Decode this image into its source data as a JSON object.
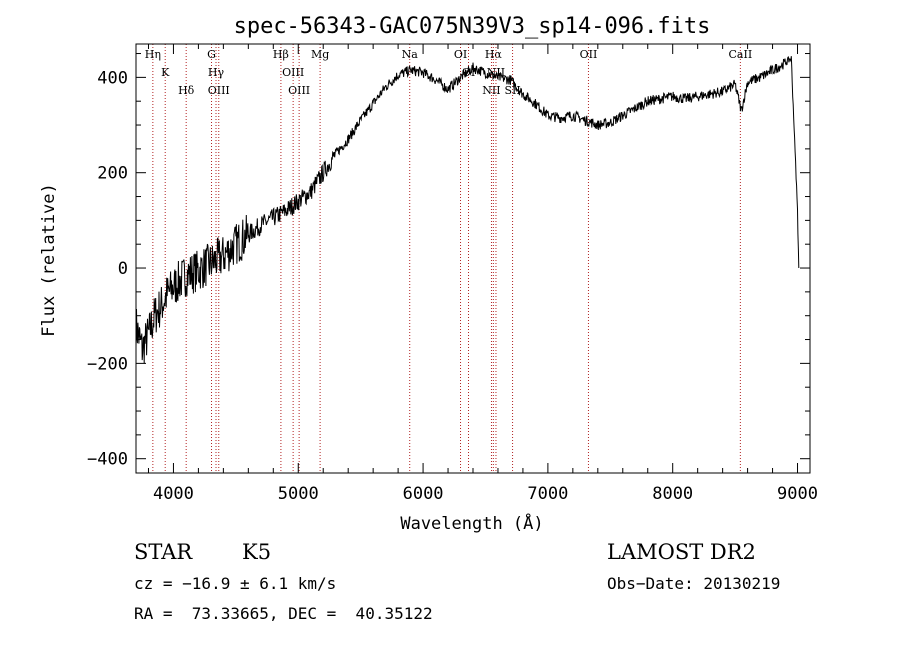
{
  "chart_data": {
    "type": "line",
    "title": "spec-56343-GAC075N39V3_sp14-096.fits",
    "xlabel": "Wavelength (Å)",
    "ylabel": "Flux (relative)",
    "xlim": [
      3700,
      9100
    ],
    "ylim": [
      -430,
      470
    ],
    "xticks": [
      4000,
      5000,
      6000,
      7000,
      8000,
      9000
    ],
    "yticks": [
      -400,
      -200,
      0,
      200,
      400
    ],
    "grid": false,
    "series": [
      {
        "x": [
          3700,
          3750,
          3800,
          3850,
          3900,
          3950,
          4000,
          4100,
          4200,
          4300,
          4400,
          4500,
          4600,
          4700,
          4800,
          4900,
          5000,
          5100,
          5200,
          5300,
          5400,
          5500,
          5600,
          5700,
          5800,
          5900,
          6000,
          6100,
          6200,
          6300,
          6400,
          6500,
          6600,
          6700,
          6800,
          6900,
          7000,
          7100,
          7200,
          7300,
          7400,
          7500,
          7600,
          7700,
          7800,
          7900,
          8000,
          8100,
          8200,
          8300,
          8400,
          8500,
          8550,
          8600,
          8700,
          8800,
          8900,
          8950,
          9000,
          9010
        ],
        "y": [
          -120,
          -170,
          -140,
          -100,
          -80,
          -55,
          -40,
          -15,
          -5,
          10,
          25,
          50,
          70,
          90,
          105,
          120,
          140,
          160,
          200,
          240,
          270,
          310,
          345,
          380,
          405,
          415,
          410,
          395,
          375,
          400,
          420,
          410,
          400,
          395,
          365,
          345,
          320,
          315,
          320,
          310,
          300,
          305,
          320,
          335,
          350,
          355,
          360,
          355,
          360,
          365,
          370,
          385,
          330,
          390,
          400,
          415,
          430,
          440,
          120,
          0
        ]
      }
    ],
    "lines": [
      {
        "name": "Hη",
        "wave": 3835
      },
      {
        "name": "K",
        "wave": 3934
      },
      {
        "name": "Hδ",
        "wave": 4102
      },
      {
        "name": "G",
        "wave": 4305
      },
      {
        "name": "Hγ",
        "wave": 4341
      },
      {
        "name": "OIII",
        "wave": 4363
      },
      {
        "name": "Hβ",
        "wave": 4861
      },
      {
        "name": "OIII",
        "wave": 4959
      },
      {
        "name": "OIII",
        "wave": 5007
      },
      {
        "name": "Mg",
        "wave": 5175
      },
      {
        "name": "Na",
        "wave": 5893
      },
      {
        "name": "OI",
        "wave": 6300
      },
      {
        "name": "OI",
        "wave": 6364
      },
      {
        "name": "NII",
        "wave": 6548
      },
      {
        "name": "Hα",
        "wave": 6563
      },
      {
        "name": "NII",
        "wave": 6584
      },
      {
        "name": "SII",
        "wave": 6717
      },
      {
        "name": "OII",
        "wave": 7325
      },
      {
        "name": "CaII",
        "wave": 8542
      }
    ]
  },
  "info": {
    "class": "STAR",
    "subclass": "K5",
    "survey": "LAMOST DR2",
    "cz": "cz = −16.9 ± 6.1 km/s",
    "obs_date": "Obs−Date: 20130219",
    "coords": "RA =  73.33665, DEC =  40.35122"
  }
}
